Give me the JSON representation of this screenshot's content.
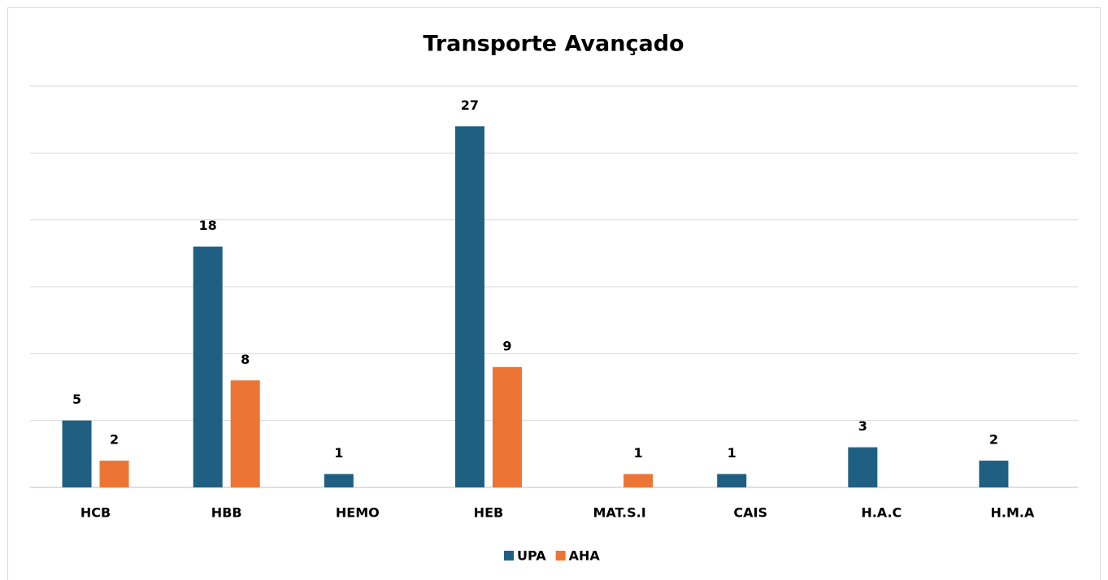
{
  "chart_data": {
    "type": "bar",
    "title": "Transporte Avançado",
    "categories": [
      "HCB",
      "HBB",
      "HEMO",
      "HEB",
      "MAT.S.I",
      "CAIS",
      "H.A.C",
      "H.M.A"
    ],
    "series": [
      {
        "name": "UPA",
        "color": "#1f6082",
        "values": [
          5,
          18,
          1,
          27,
          null,
          1,
          3,
          2
        ]
      },
      {
        "name": "AHA",
        "color": "#ec7535",
        "values": [
          2,
          8,
          null,
          9,
          1,
          null,
          null,
          null
        ]
      }
    ],
    "ylim": [
      0,
      30
    ],
    "yticks": [
      0,
      5,
      10,
      15,
      20,
      25,
      30
    ],
    "grid": true,
    "legend": "bottom"
  }
}
